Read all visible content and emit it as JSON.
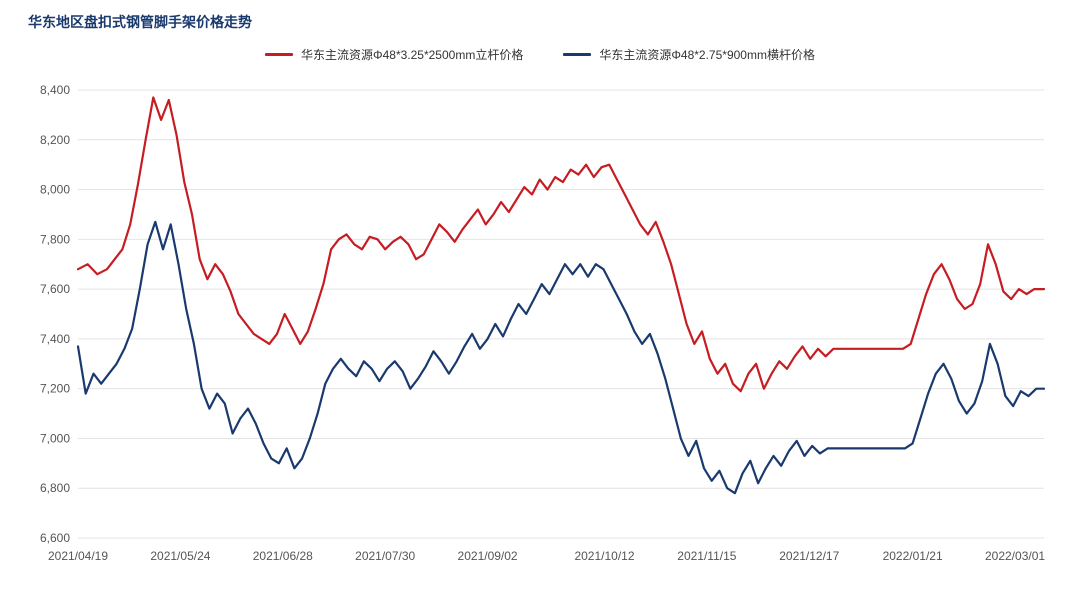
{
  "title": "华东地区盘扣式钢管脚手架价格走势",
  "legend": {
    "series1": "华东主流资源Φ48*3.25*2500mm立杆价格",
    "series2": "华东主流资源Φ48*2.75*900mm横杆价格"
  },
  "chart": {
    "type": "line",
    "background_color": "#ffffff",
    "grid_color": "#e4e4e4",
    "axis_text_color": "#555555",
    "title_color": "#1a3a6e",
    "title_fontsize": 14,
    "label_fontsize": 12,
    "line_width": 2.2,
    "ylim": [
      6600,
      8400
    ],
    "ytick_step": 200,
    "yticks": [
      6600,
      6800,
      7000,
      7200,
      7400,
      7600,
      7800,
      8000,
      8200,
      8400
    ],
    "xtick_labels": [
      "2021/04/19",
      "2021/05/24",
      "2021/06/28",
      "2021/07/30",
      "2021/09/02",
      "2021/10/12",
      "2021/11/15",
      "2021/12/17",
      "2022/01/21",
      "2022/03/01"
    ],
    "xtick_positions": [
      0,
      0.106,
      0.212,
      0.318,
      0.424,
      0.545,
      0.651,
      0.757,
      0.864,
      0.97
    ],
    "series": [
      {
        "name": "series1",
        "color": "#c61d23",
        "data": [
          [
            0.0,
            7680
          ],
          [
            0.01,
            7700
          ],
          [
            0.02,
            7660
          ],
          [
            0.03,
            7680
          ],
          [
            0.038,
            7720
          ],
          [
            0.046,
            7760
          ],
          [
            0.054,
            7860
          ],
          [
            0.062,
            8020
          ],
          [
            0.07,
            8200
          ],
          [
            0.078,
            8370
          ],
          [
            0.086,
            8280
          ],
          [
            0.094,
            8360
          ],
          [
            0.102,
            8220
          ],
          [
            0.11,
            8030
          ],
          [
            0.118,
            7900
          ],
          [
            0.126,
            7720
          ],
          [
            0.134,
            7640
          ],
          [
            0.142,
            7700
          ],
          [
            0.15,
            7660
          ],
          [
            0.158,
            7590
          ],
          [
            0.166,
            7500
          ],
          [
            0.174,
            7460
          ],
          [
            0.182,
            7420
          ],
          [
            0.19,
            7400
          ],
          [
            0.198,
            7380
          ],
          [
            0.206,
            7420
          ],
          [
            0.214,
            7500
          ],
          [
            0.222,
            7440
          ],
          [
            0.23,
            7380
          ],
          [
            0.238,
            7430
          ],
          [
            0.246,
            7520
          ],
          [
            0.254,
            7620
          ],
          [
            0.262,
            7760
          ],
          [
            0.27,
            7800
          ],
          [
            0.278,
            7820
          ],
          [
            0.286,
            7780
          ],
          [
            0.294,
            7760
          ],
          [
            0.302,
            7810
          ],
          [
            0.31,
            7800
          ],
          [
            0.318,
            7760
          ],
          [
            0.326,
            7790
          ],
          [
            0.334,
            7810
          ],
          [
            0.342,
            7780
          ],
          [
            0.35,
            7720
          ],
          [
            0.358,
            7740
          ],
          [
            0.366,
            7800
          ],
          [
            0.374,
            7860
          ],
          [
            0.382,
            7830
          ],
          [
            0.39,
            7790
          ],
          [
            0.398,
            7840
          ],
          [
            0.406,
            7880
          ],
          [
            0.414,
            7920
          ],
          [
            0.422,
            7860
          ],
          [
            0.43,
            7900
          ],
          [
            0.438,
            7950
          ],
          [
            0.446,
            7910
          ],
          [
            0.454,
            7960
          ],
          [
            0.462,
            8010
          ],
          [
            0.47,
            7980
          ],
          [
            0.478,
            8040
          ],
          [
            0.486,
            8000
          ],
          [
            0.494,
            8050
          ],
          [
            0.502,
            8030
          ],
          [
            0.51,
            8080
          ],
          [
            0.518,
            8060
          ],
          [
            0.526,
            8100
          ],
          [
            0.534,
            8050
          ],
          [
            0.542,
            8090
          ],
          [
            0.55,
            8100
          ],
          [
            0.558,
            8040
          ],
          [
            0.566,
            7980
          ],
          [
            0.574,
            7920
          ],
          [
            0.582,
            7860
          ],
          [
            0.59,
            7820
          ],
          [
            0.598,
            7870
          ],
          [
            0.606,
            7790
          ],
          [
            0.614,
            7700
          ],
          [
            0.622,
            7580
          ],
          [
            0.63,
            7460
          ],
          [
            0.638,
            7380
          ],
          [
            0.646,
            7430
          ],
          [
            0.654,
            7320
          ],
          [
            0.662,
            7260
          ],
          [
            0.67,
            7300
          ],
          [
            0.678,
            7220
          ],
          [
            0.686,
            7190
          ],
          [
            0.694,
            7260
          ],
          [
            0.702,
            7300
          ],
          [
            0.71,
            7200
          ],
          [
            0.718,
            7260
          ],
          [
            0.726,
            7310
          ],
          [
            0.734,
            7280
          ],
          [
            0.742,
            7330
          ],
          [
            0.75,
            7370
          ],
          [
            0.758,
            7320
          ],
          [
            0.766,
            7360
          ],
          [
            0.774,
            7330
          ],
          [
            0.782,
            7360
          ],
          [
            0.79,
            7360
          ],
          [
            0.798,
            7360
          ],
          [
            0.806,
            7360
          ],
          [
            0.814,
            7360
          ],
          [
            0.822,
            7360
          ],
          [
            0.83,
            7360
          ],
          [
            0.838,
            7360
          ],
          [
            0.846,
            7360
          ],
          [
            0.854,
            7360
          ],
          [
            0.862,
            7380
          ],
          [
            0.87,
            7480
          ],
          [
            0.878,
            7580
          ],
          [
            0.886,
            7660
          ],
          [
            0.894,
            7700
          ],
          [
            0.902,
            7640
          ],
          [
            0.91,
            7560
          ],
          [
            0.918,
            7520
          ],
          [
            0.926,
            7540
          ],
          [
            0.934,
            7620
          ],
          [
            0.942,
            7780
          ],
          [
            0.95,
            7700
          ],
          [
            0.958,
            7590
          ],
          [
            0.966,
            7560
          ],
          [
            0.974,
            7600
          ],
          [
            0.982,
            7580
          ],
          [
            0.99,
            7600
          ],
          [
            1.0,
            7600
          ]
        ]
      },
      {
        "name": "series2",
        "color": "#1a3a6e",
        "data": [
          [
            0.0,
            7370
          ],
          [
            0.008,
            7180
          ],
          [
            0.016,
            7260
          ],
          [
            0.024,
            7220
          ],
          [
            0.032,
            7260
          ],
          [
            0.04,
            7300
          ],
          [
            0.048,
            7360
          ],
          [
            0.056,
            7440
          ],
          [
            0.064,
            7600
          ],
          [
            0.072,
            7780
          ],
          [
            0.08,
            7870
          ],
          [
            0.088,
            7760
          ],
          [
            0.096,
            7860
          ],
          [
            0.104,
            7700
          ],
          [
            0.112,
            7520
          ],
          [
            0.12,
            7380
          ],
          [
            0.128,
            7200
          ],
          [
            0.136,
            7120
          ],
          [
            0.144,
            7180
          ],
          [
            0.152,
            7140
          ],
          [
            0.16,
            7020
          ],
          [
            0.168,
            7080
          ],
          [
            0.176,
            7120
          ],
          [
            0.184,
            7060
          ],
          [
            0.192,
            6980
          ],
          [
            0.2,
            6920
          ],
          [
            0.208,
            6900
          ],
          [
            0.216,
            6960
          ],
          [
            0.224,
            6880
          ],
          [
            0.232,
            6920
          ],
          [
            0.24,
            7000
          ],
          [
            0.248,
            7100
          ],
          [
            0.256,
            7220
          ],
          [
            0.264,
            7280
          ],
          [
            0.272,
            7320
          ],
          [
            0.28,
            7280
          ],
          [
            0.288,
            7250
          ],
          [
            0.296,
            7310
          ],
          [
            0.304,
            7280
          ],
          [
            0.312,
            7230
          ],
          [
            0.32,
            7280
          ],
          [
            0.328,
            7310
          ],
          [
            0.336,
            7270
          ],
          [
            0.344,
            7200
          ],
          [
            0.352,
            7240
          ],
          [
            0.36,
            7290
          ],
          [
            0.368,
            7350
          ],
          [
            0.376,
            7310
          ],
          [
            0.384,
            7260
          ],
          [
            0.392,
            7310
          ],
          [
            0.4,
            7370
          ],
          [
            0.408,
            7420
          ],
          [
            0.416,
            7360
          ],
          [
            0.424,
            7400
          ],
          [
            0.432,
            7460
          ],
          [
            0.44,
            7410
          ],
          [
            0.448,
            7480
          ],
          [
            0.456,
            7540
          ],
          [
            0.464,
            7500
          ],
          [
            0.472,
            7560
          ],
          [
            0.48,
            7620
          ],
          [
            0.488,
            7580
          ],
          [
            0.496,
            7640
          ],
          [
            0.504,
            7700
          ],
          [
            0.512,
            7660
          ],
          [
            0.52,
            7700
          ],
          [
            0.528,
            7650
          ],
          [
            0.536,
            7700
          ],
          [
            0.544,
            7680
          ],
          [
            0.552,
            7620
          ],
          [
            0.56,
            7560
          ],
          [
            0.568,
            7500
          ],
          [
            0.576,
            7430
          ],
          [
            0.584,
            7380
          ],
          [
            0.592,
            7420
          ],
          [
            0.6,
            7340
          ],
          [
            0.608,
            7240
          ],
          [
            0.616,
            7120
          ],
          [
            0.624,
            7000
          ],
          [
            0.632,
            6930
          ],
          [
            0.64,
            6990
          ],
          [
            0.648,
            6880
          ],
          [
            0.656,
            6830
          ],
          [
            0.664,
            6870
          ],
          [
            0.672,
            6800
          ],
          [
            0.68,
            6780
          ],
          [
            0.688,
            6860
          ],
          [
            0.696,
            6910
          ],
          [
            0.704,
            6820
          ],
          [
            0.712,
            6880
          ],
          [
            0.72,
            6930
          ],
          [
            0.728,
            6890
          ],
          [
            0.736,
            6950
          ],
          [
            0.744,
            6990
          ],
          [
            0.752,
            6930
          ],
          [
            0.76,
            6970
          ],
          [
            0.768,
            6940
          ],
          [
            0.776,
            6960
          ],
          [
            0.784,
            6960
          ],
          [
            0.792,
            6960
          ],
          [
            0.8,
            6960
          ],
          [
            0.808,
            6960
          ],
          [
            0.816,
            6960
          ],
          [
            0.824,
            6960
          ],
          [
            0.832,
            6960
          ],
          [
            0.84,
            6960
          ],
          [
            0.848,
            6960
          ],
          [
            0.856,
            6960
          ],
          [
            0.864,
            6980
          ],
          [
            0.872,
            7080
          ],
          [
            0.88,
            7180
          ],
          [
            0.888,
            7260
          ],
          [
            0.896,
            7300
          ],
          [
            0.904,
            7240
          ],
          [
            0.912,
            7150
          ],
          [
            0.92,
            7100
          ],
          [
            0.928,
            7140
          ],
          [
            0.936,
            7230
          ],
          [
            0.944,
            7380
          ],
          [
            0.952,
            7300
          ],
          [
            0.96,
            7170
          ],
          [
            0.968,
            7130
          ],
          [
            0.976,
            7190
          ],
          [
            0.984,
            7170
          ],
          [
            0.992,
            7200
          ],
          [
            1.0,
            7200
          ]
        ]
      }
    ]
  }
}
